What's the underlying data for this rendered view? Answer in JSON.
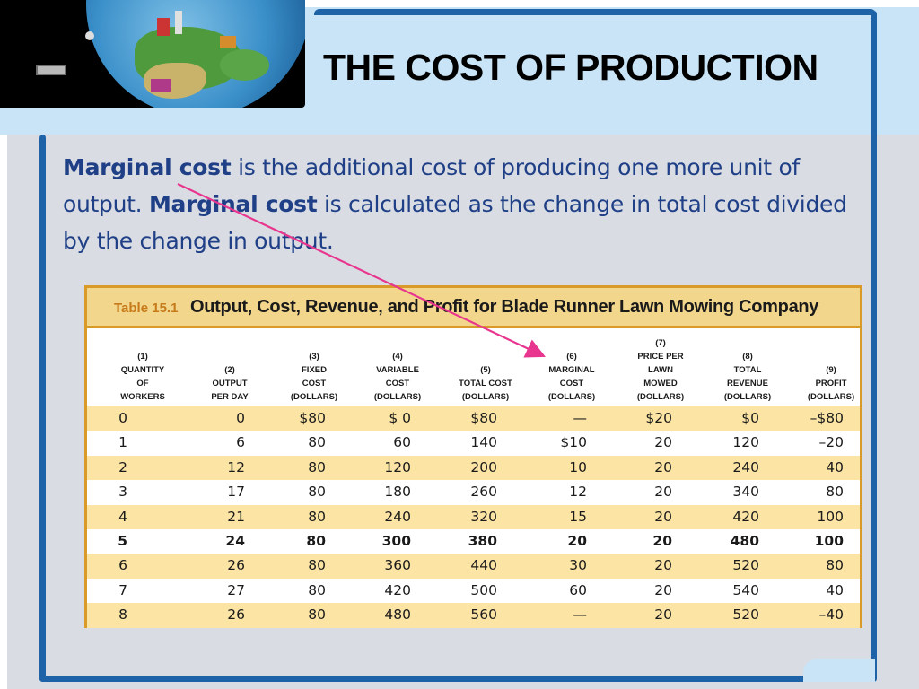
{
  "slide": {
    "title": "THE COST OF PRODUCTION",
    "paragraph": {
      "term1": "Marginal cost",
      "text1": " is the additional cost of producing one more unit of output. ",
      "term2": "Marginal cost",
      "text2": " is calculated as the change in total cost divided by the change in output."
    }
  },
  "table": {
    "label": "Table 15.1",
    "title": "Output, Cost, Revenue, and Profit for Blade Runner Lawn Mowing Company",
    "columns": [
      {
        "num": "(1)",
        "lines": [
          "QUANTITY",
          "OF",
          "WORKERS"
        ]
      },
      {
        "num": "(2)",
        "lines": [
          "OUTPUT",
          "PER DAY"
        ]
      },
      {
        "num": "(3)",
        "lines": [
          "FIXED",
          "COST",
          "(DOLLARS)"
        ]
      },
      {
        "num": "(4)",
        "lines": [
          "VARIABLE",
          "COST",
          "(DOLLARS)"
        ]
      },
      {
        "num": "(5)",
        "lines": [
          "TOTAL COST",
          "(DOLLARS)"
        ]
      },
      {
        "num": "(6)",
        "lines": [
          "MARGINAL",
          "COST",
          "(DOLLARS)"
        ]
      },
      {
        "num": "(7)",
        "lines": [
          "PRICE PER",
          "LAWN",
          "MOWED",
          "(DOLLARS)"
        ]
      },
      {
        "num": "(8)",
        "lines": [
          "TOTAL",
          "REVENUE",
          "(DOLLARS)"
        ]
      },
      {
        "num": "(9)",
        "lines": [
          "PROFIT",
          "(DOLLARS)"
        ]
      }
    ],
    "rows": [
      [
        "0",
        "0",
        "$80",
        "$ 0",
        "$80",
        "—",
        "$20",
        "$0",
        "–$80"
      ],
      [
        "1",
        "6",
        "80",
        "60",
        "140",
        "$10",
        "20",
        "120",
        "–20"
      ],
      [
        "2",
        "12",
        "80",
        "120",
        "200",
        "10",
        "20",
        "240",
        "40"
      ],
      [
        "3",
        "17",
        "80",
        "180",
        "260",
        "12",
        "20",
        "340",
        "80"
      ],
      [
        "4",
        "21",
        "80",
        "240",
        "320",
        "15",
        "20",
        "420",
        "100"
      ],
      [
        "5",
        "24",
        "80",
        "300",
        "380",
        "20",
        "20",
        "480",
        "100"
      ],
      [
        "6",
        "26",
        "80",
        "360",
        "440",
        "30",
        "20",
        "520",
        "80"
      ],
      [
        "7",
        "27",
        "80",
        "420",
        "500",
        "60",
        "20",
        "540",
        "40"
      ],
      [
        "8",
        "26",
        "80",
        "480",
        "560",
        "—",
        "20",
        "520",
        "–40"
      ]
    ],
    "bold_row_index": 5
  },
  "colors": {
    "accent_blue": "#1e63a8",
    "header_band": "#c8e4f6",
    "table_border": "#d99a2a",
    "row_highlight": "#fbe4a4",
    "arrow": "#e8368f",
    "body_text": "#1f3f87"
  },
  "icons": {
    "header_image": "globe-illustration"
  }
}
